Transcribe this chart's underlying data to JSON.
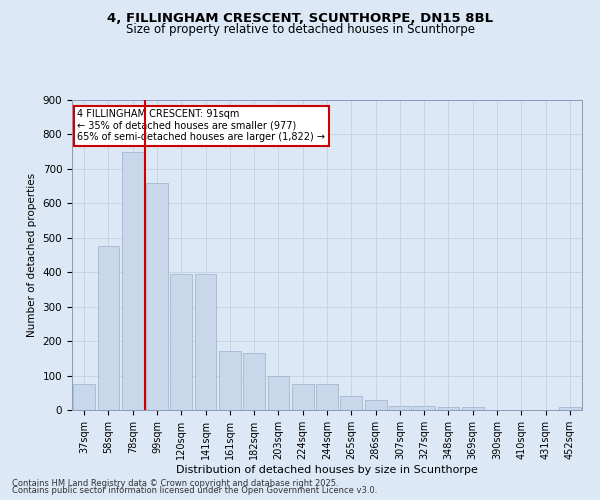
{
  "title_line1": "4, FILLINGHAM CRESCENT, SCUNTHORPE, DN15 8BL",
  "title_line2": "Size of property relative to detached houses in Scunthorpe",
  "xlabel": "Distribution of detached houses by size in Scunthorpe",
  "ylabel": "Number of detached properties",
  "categories": [
    "37sqm",
    "58sqm",
    "78sqm",
    "99sqm",
    "120sqm",
    "141sqm",
    "161sqm",
    "182sqm",
    "203sqm",
    "224sqm",
    "244sqm",
    "265sqm",
    "286sqm",
    "307sqm",
    "327sqm",
    "348sqm",
    "369sqm",
    "390sqm",
    "410sqm",
    "431sqm",
    "452sqm"
  ],
  "values": [
    75,
    475,
    750,
    660,
    395,
    395,
    170,
    165,
    100,
    75,
    75,
    40,
    30,
    12,
    12,
    10,
    8,
    0,
    0,
    0,
    8
  ],
  "bar_color": "#c8d8ea",
  "bar_edge_color": "#9ab0cc",
  "red_line_x": 2.5,
  "annotation_text": "4 FILLINGHAM CRESCENT: 91sqm\n← 35% of detached houses are smaller (977)\n65% of semi-detached houses are larger (1,822) →",
  "annotation_box_facecolor": "#ffffff",
  "annotation_box_edgecolor": "#cc0000",
  "grid_color": "#c8d4e4",
  "background_color": "#dce8f5",
  "plot_bg_color": "#dce8f5",
  "footer_line1": "Contains HM Land Registry data © Crown copyright and database right 2025.",
  "footer_line2": "Contains public sector information licensed under the Open Government Licence v3.0.",
  "ylim": [
    0,
    900
  ],
  "yticks": [
    0,
    100,
    200,
    300,
    400,
    500,
    600,
    700,
    800,
    900
  ]
}
